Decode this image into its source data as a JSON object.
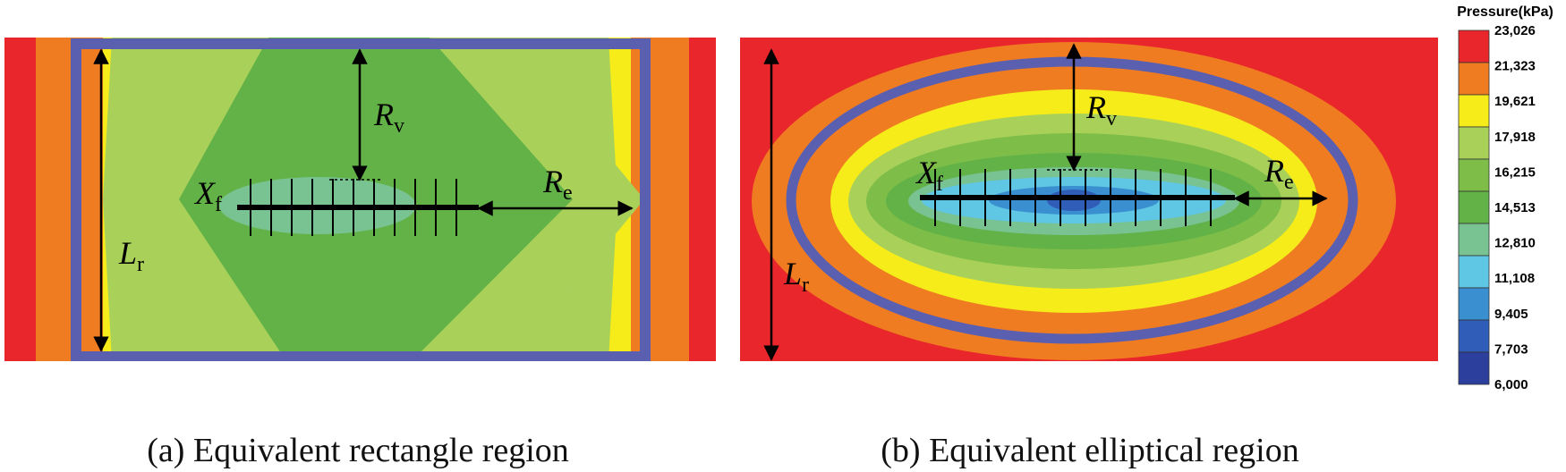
{
  "panel_a": {
    "caption": "(a) Equivalent rectangle region",
    "labels": {
      "rv": "R",
      "rv_sub": "v",
      "re": "R",
      "re_sub": "e",
      "xf": "X",
      "xf_sub": "f",
      "lr": "L",
      "lr_sub": "r"
    }
  },
  "panel_b": {
    "caption": "(b) Equivalent elliptical region",
    "labels": {
      "rv": "R",
      "rv_sub": "v",
      "re": "R",
      "re_sub": "e",
      "xf": "X",
      "xf_sub": "f",
      "lr": "L",
      "lr_sub": "r"
    }
  },
  "legend": {
    "title": "Pressure(kPa)",
    "ticks": [
      "23,026",
      "21,323",
      "19,621",
      "17,918",
      "16,215",
      "14,513",
      "12,810",
      "11,108",
      "9,405",
      "7,703",
      "6,000"
    ],
    "colors": [
      "#e8262b",
      "#f07c22",
      "#f5ec1a",
      "#a9d15a",
      "#7dbd48",
      "#62b247",
      "#78c391",
      "#5fc6e4",
      "#3a8fd1",
      "#2f5db7",
      "#2d3f9c"
    ]
  }
}
